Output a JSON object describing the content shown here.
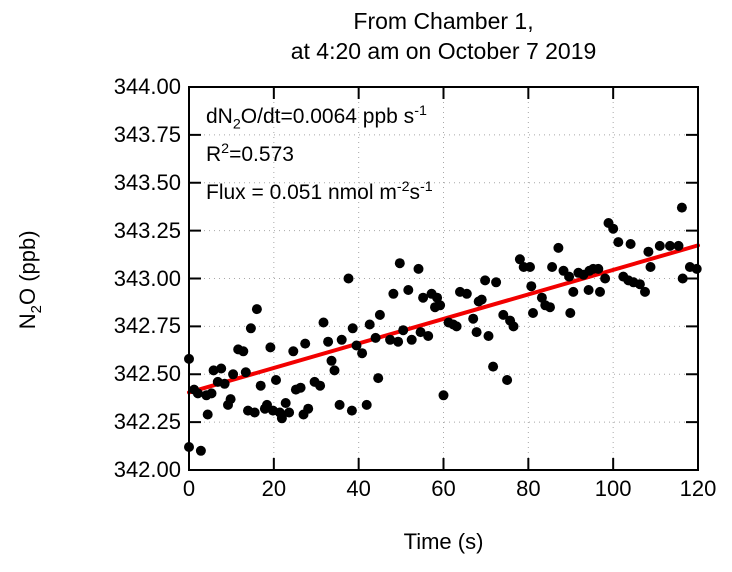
{
  "page": {
    "background": "#ffffff",
    "text_color": "#000000"
  },
  "chart_data": {
    "type": "scatter",
    "title_lines": [
      "From Chamber 1,",
      "at 4:20 am on October 7 2019"
    ],
    "xlabel": "Time (s)",
    "ylabel_parts": {
      "pre": "N",
      "sub": "2",
      "post": "O (ppb)"
    },
    "xlim": [
      0,
      120
    ],
    "ylim": [
      342.0,
      344.0
    ],
    "x_ticks": [
      "0",
      "20",
      "40",
      "60",
      "80",
      "100",
      "120"
    ],
    "y_ticks": [
      "342.00",
      "342.25",
      "342.50",
      "342.75",
      "343.00",
      "343.25",
      "343.50",
      "343.75",
      "344.00"
    ],
    "grid": true,
    "grid_style": {
      "color": "#a8a8a8",
      "dash": "1 4"
    },
    "annotations": [
      {
        "name": "slope-annotation",
        "parts": [
          {
            "t": "dN"
          },
          {
            "t": "2",
            "style": "sub"
          },
          {
            "t": "O/dt=0.0064 ppb s"
          },
          {
            "t": "-1",
            "style": "sup"
          }
        ]
      },
      {
        "name": "r-squared-annotation",
        "parts": [
          {
            "t": "R"
          },
          {
            "t": "2",
            "style": "sup"
          },
          {
            "t": "=0.573"
          }
        ]
      },
      {
        "name": "flux-annotation",
        "parts": [
          {
            "t": "Flux = 0.051 nmol m"
          },
          {
            "t": "-2",
            "style": "sup"
          },
          {
            "t": "s"
          },
          {
            "t": "-1",
            "style": "sup"
          }
        ]
      }
    ],
    "fit_line": {
      "color": "#f20000",
      "slope_ppb_per_s": 0.0064,
      "x": [
        0,
        120
      ],
      "y": [
        342.405,
        343.173
      ]
    },
    "point_color": "#000000",
    "point_radius": 5,
    "series": [
      {
        "name": "N2O concentration",
        "points": [
          [
            0.0,
            342.12
          ],
          [
            0.0,
            342.58
          ],
          [
            1.2,
            342.42
          ],
          [
            2.1,
            342.4
          ],
          [
            2.8,
            342.1
          ],
          [
            4.1,
            342.39
          ],
          [
            4.4,
            342.29
          ],
          [
            5.3,
            342.4
          ],
          [
            5.8,
            342.52
          ],
          [
            6.8,
            342.46
          ],
          [
            7.6,
            342.53
          ],
          [
            8.4,
            342.45
          ],
          [
            9.2,
            342.34
          ],
          [
            9.8,
            342.37
          ],
          [
            10.4,
            342.5
          ],
          [
            11.6,
            342.63
          ],
          [
            12.8,
            342.62
          ],
          [
            13.4,
            342.51
          ],
          [
            13.9,
            342.31
          ],
          [
            14.6,
            342.74
          ],
          [
            15.5,
            342.3
          ],
          [
            16.0,
            342.84
          ],
          [
            16.9,
            342.44
          ],
          [
            17.9,
            342.32
          ],
          [
            18.4,
            342.34
          ],
          [
            19.2,
            342.64
          ],
          [
            19.8,
            342.31
          ],
          [
            20.5,
            342.47
          ],
          [
            21.4,
            342.3
          ],
          [
            21.9,
            342.27
          ],
          [
            22.8,
            342.35
          ],
          [
            23.6,
            342.3
          ],
          [
            24.6,
            342.62
          ],
          [
            25.2,
            342.42
          ],
          [
            26.3,
            342.43
          ],
          [
            27.0,
            342.29
          ],
          [
            27.4,
            342.66
          ],
          [
            28.1,
            342.32
          ],
          [
            29.6,
            342.46
          ],
          [
            30.9,
            342.44
          ],
          [
            31.7,
            342.77
          ],
          [
            32.8,
            342.67
          ],
          [
            33.6,
            342.57
          ],
          [
            34.3,
            342.52
          ],
          [
            35.5,
            342.34
          ],
          [
            36.0,
            342.68
          ],
          [
            37.6,
            343.0
          ],
          [
            38.4,
            342.31
          ],
          [
            38.6,
            342.74
          ],
          [
            39.5,
            342.65
          ],
          [
            40.8,
            342.61
          ],
          [
            41.9,
            342.34
          ],
          [
            42.6,
            342.76
          ],
          [
            44.0,
            342.69
          ],
          [
            44.6,
            342.48
          ],
          [
            45.0,
            342.81
          ],
          [
            47.4,
            342.68
          ],
          [
            48.2,
            342.92
          ],
          [
            49.3,
            342.67
          ],
          [
            49.7,
            343.08
          ],
          [
            50.5,
            342.73
          ],
          [
            51.7,
            342.94
          ],
          [
            52.5,
            342.68
          ],
          [
            54.1,
            343.05
          ],
          [
            54.6,
            342.72
          ],
          [
            55.2,
            342.9
          ],
          [
            56.4,
            342.7
          ],
          [
            57.2,
            342.92
          ],
          [
            58.0,
            342.85
          ],
          [
            58.5,
            342.9
          ],
          [
            59.2,
            342.86
          ],
          [
            60.0,
            342.39
          ],
          [
            61.2,
            342.77
          ],
          [
            62.3,
            342.76
          ],
          [
            63.1,
            342.75
          ],
          [
            63.9,
            342.93
          ],
          [
            65.5,
            342.92
          ],
          [
            67.0,
            342.79
          ],
          [
            67.8,
            342.72
          ],
          [
            68.3,
            342.88
          ],
          [
            69.0,
            342.89
          ],
          [
            69.8,
            342.99
          ],
          [
            70.6,
            342.7
          ],
          [
            71.7,
            342.54
          ],
          [
            72.4,
            342.98
          ],
          [
            74.1,
            342.81
          ],
          [
            75.0,
            342.47
          ],
          [
            75.7,
            342.78
          ],
          [
            76.5,
            342.75
          ],
          [
            78.0,
            343.1
          ],
          [
            78.9,
            343.06
          ],
          [
            80.4,
            343.06
          ],
          [
            80.7,
            342.96
          ],
          [
            81.1,
            342.82
          ],
          [
            83.2,
            342.9
          ],
          [
            84.0,
            342.86
          ],
          [
            85.1,
            342.85
          ],
          [
            85.6,
            343.06
          ],
          [
            87.1,
            343.16
          ],
          [
            88.3,
            343.04
          ],
          [
            89.6,
            343.01
          ],
          [
            89.9,
            342.82
          ],
          [
            90.6,
            342.93
          ],
          [
            91.8,
            343.03
          ],
          [
            93.0,
            343.02
          ],
          [
            94.2,
            342.94
          ],
          [
            94.4,
            343.04
          ],
          [
            95.3,
            343.05
          ],
          [
            96.5,
            343.05
          ],
          [
            96.9,
            342.93
          ],
          [
            98.1,
            343.0
          ],
          [
            98.9,
            343.29
          ],
          [
            100.0,
            343.26
          ],
          [
            101.2,
            343.19
          ],
          [
            102.4,
            343.01
          ],
          [
            103.6,
            342.99
          ],
          [
            104.1,
            343.18
          ],
          [
            104.8,
            342.98
          ],
          [
            106.3,
            342.97
          ],
          [
            107.5,
            342.93
          ],
          [
            108.3,
            343.14
          ],
          [
            108.8,
            343.06
          ],
          [
            111.0,
            343.17
          ],
          [
            113.4,
            343.17
          ],
          [
            115.4,
            343.17
          ],
          [
            116.2,
            343.37
          ],
          [
            116.4,
            343.0
          ],
          [
            118.1,
            343.06
          ],
          [
            119.7,
            343.05
          ]
        ]
      }
    ],
    "layout": {
      "plot_left": 189,
      "plot_top": 87,
      "plot_right": 698,
      "plot_bottom": 470,
      "tick_length": 12,
      "border_color": "#000000"
    }
  }
}
